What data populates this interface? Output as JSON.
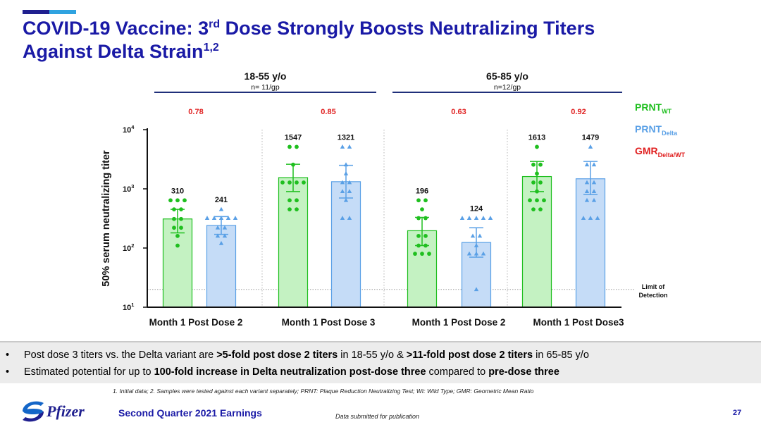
{
  "slide": {
    "title_main": "COVID-19 Vaccine: 3",
    "title_sup": "rd",
    "title_rest": " Dose Strongly Boosts Neutralizing Titers",
    "title_line2": "Against Delta Strain",
    "title_line2_sup": "1,2",
    "bullets": [
      [
        {
          "t": "Post dose 3 titers vs. the Delta variant are ",
          "b": false
        },
        {
          "t": ">5-fold post dose 2 titers",
          "b": true
        },
        {
          "t": " in 18-55 y/o & ",
          "b": false
        },
        {
          "t": ">11-fold post dose 2 titers",
          "b": true
        },
        {
          "t": " in 65-85 y/o",
          "b": false
        }
      ],
      [
        {
          "t": "Estimated potential for up to ",
          "b": false
        },
        {
          "t": "100-fold increase in Delta neutralization post-dose three",
          "b": true
        },
        {
          "t": " compared to ",
          "b": false
        },
        {
          "t": "pre-dose three",
          "b": true
        }
      ]
    ],
    "footnote": "1. Initial data; 2. Samples were tested against each variant separately; PRNT: Plaque Reduction Neutralizing Test; Wt: Wild Type; GMR: Geometric Mean Ratio",
    "footer_title": "Second Quarter 2021 Earnings",
    "footer_note": "Data submitted for publication",
    "page_number": "27",
    "logo_text": "Pfizer"
  },
  "colors": {
    "title": "#1a1aa6",
    "wt": "#1fbf1f",
    "wt_fill": "#c4f2c2",
    "delta": "#5aa0e6",
    "delta_fill": "#c5dcf7",
    "gmr": "#e02020",
    "group_line": "#1f2f7a",
    "lod_line": "#999999"
  },
  "chart_data": {
    "type": "bar",
    "ylabel": "50% serum neutralizing titer",
    "yscale": "log",
    "ylim": [
      10,
      10000
    ],
    "yticks": [
      {
        "base": "10",
        "exp": "1",
        "value": 10
      },
      {
        "base": "10",
        "exp": "2",
        "value": 100
      },
      {
        "base": "10",
        "exp": "3",
        "value": 1000
      },
      {
        "base": "10",
        "exp": "4",
        "value": 10000
      }
    ],
    "limit_of_detection": {
      "value": 20,
      "label_line1": "Limit of",
      "label_line2": "Detection"
    },
    "legend": [
      {
        "base": "PRNT",
        "sub": "WT",
        "color": "#1fbf1f"
      },
      {
        "base": "PRNT",
        "sub": "Delta",
        "color": "#5aa0e6"
      },
      {
        "base": "GMR",
        "sub": "Delta/WT",
        "color": "#e02020"
      }
    ],
    "age_groups": [
      {
        "label": "18-55 y/o",
        "sublabel": "n= 11/gp"
      },
      {
        "label": "65-85 y/o",
        "sublabel": "n=12/gp"
      }
    ],
    "timepoints": [
      {
        "label": "Month 1 Post Dose 2",
        "gmr": "0.78"
      },
      {
        "label": "Month 1 Post Dose 3",
        "gmr": "0.85"
      },
      {
        "label": "Month 1 Post Dose 2",
        "gmr": "0.63"
      },
      {
        "label": "Month 1 Post  Dose3",
        "gmr": "0.92"
      }
    ],
    "bars": [
      {
        "series": "PRNT WT",
        "value": 310,
        "label": "310",
        "ci": [
          180,
          450
        ],
        "points": [
          640,
          640,
          640,
          450,
          450,
          310,
          310,
          220,
          220,
          160,
          110
        ]
      },
      {
        "series": "PRNT Delta",
        "value": 241,
        "label": "241",
        "ci": [
          170,
          340
        ],
        "points": [
          450,
          320,
          320,
          320,
          320,
          320,
          220,
          220,
          160,
          160,
          120
        ]
      },
      {
        "series": "PRNT WT",
        "value": 1547,
        "label": "1547",
        "ci": [
          900,
          2600
        ],
        "points": [
          5120,
          5120,
          2560,
          1280,
          1280,
          1280,
          1280,
          640,
          640,
          450,
          450
        ]
      },
      {
        "series": "PRNT Delta",
        "value": 1321,
        "label": "1321",
        "ci": [
          700,
          2500
        ],
        "points": [
          5120,
          5120,
          2560,
          1810,
          1280,
          1280,
          905,
          905,
          640,
          320,
          320
        ]
      },
      {
        "series": "PRNT WT",
        "value": 196,
        "label": "196",
        "ci": [
          110,
          330
        ],
        "points": [
          640,
          640,
          450,
          320,
          320,
          160,
          160,
          110,
          110,
          80,
          80,
          80
        ]
      },
      {
        "series": "PRNT Delta",
        "value": 124,
        "label": "124",
        "ci": [
          70,
          220
        ],
        "points": [
          320,
          320,
          320,
          320,
          320,
          160,
          160,
          110,
          80,
          80,
          80,
          20
        ]
      },
      {
        "series": "PRNT WT",
        "value": 1613,
        "label": "1613",
        "ci": [
          900,
          2900
        ],
        "points": [
          5120,
          2560,
          2560,
          1810,
          1280,
          1280,
          905,
          640,
          640,
          640,
          450,
          450
        ]
      },
      {
        "series": "PRNT Delta",
        "value": 1479,
        "label": "1479",
        "ci": [
          800,
          2900
        ],
        "points": [
          5120,
          2560,
          2560,
          1280,
          1280,
          905,
          905,
          640,
          640,
          320,
          320,
          320
        ]
      }
    ]
  }
}
